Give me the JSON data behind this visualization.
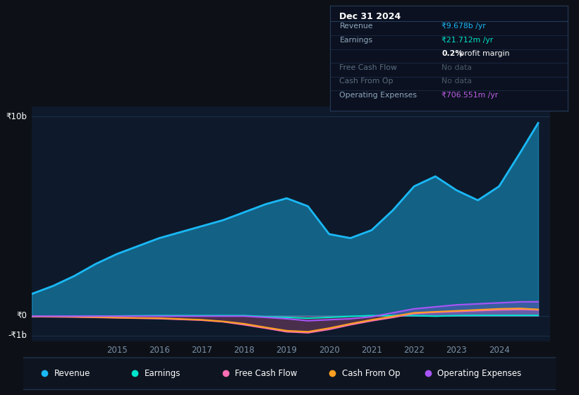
{
  "background_color": "#0d1117",
  "plot_bg_color": "#0e1a2b",
  "grid_color": "#1a3050",
  "years": [
    2013.0,
    2013.5,
    2014.0,
    2014.5,
    2015.0,
    2015.5,
    2016.0,
    2016.5,
    2017.0,
    2017.5,
    2018.0,
    2018.5,
    2019.0,
    2019.5,
    2020.0,
    2020.5,
    2021.0,
    2021.5,
    2022.0,
    2022.5,
    2023.0,
    2023.5,
    2024.0,
    2024.5,
    2024.92
  ],
  "revenue": [
    1.1,
    1.5,
    2.0,
    2.6,
    3.1,
    3.5,
    3.9,
    4.2,
    4.5,
    4.8,
    5.2,
    5.6,
    5.9,
    5.5,
    4.1,
    3.9,
    4.3,
    5.3,
    6.5,
    7.0,
    6.3,
    5.8,
    6.5,
    8.2,
    9.678
  ],
  "earnings": [
    -0.05,
    -0.04,
    -0.03,
    -0.02,
    -0.01,
    0.0,
    0.01,
    0.01,
    0.01,
    0.01,
    0.01,
    -0.05,
    -0.08,
    -0.12,
    -0.08,
    -0.03,
    0.01,
    0.01,
    0.01,
    -0.02,
    0.01,
    0.02,
    0.02,
    0.02,
    0.02
  ],
  "free_cash_flow": [
    -0.04,
    -0.05,
    -0.06,
    -0.08,
    -0.1,
    -0.12,
    -0.14,
    -0.18,
    -0.22,
    -0.3,
    -0.45,
    -0.62,
    -0.8,
    -0.85,
    -0.68,
    -0.45,
    -0.25,
    -0.08,
    0.12,
    0.18,
    0.22,
    0.26,
    0.3,
    0.32,
    0.3
  ],
  "cash_from_op": [
    -0.03,
    -0.04,
    -0.05,
    -0.07,
    -0.09,
    -0.11,
    -0.12,
    -0.16,
    -0.2,
    -0.28,
    -0.4,
    -0.58,
    -0.75,
    -0.8,
    -0.62,
    -0.4,
    -0.2,
    -0.03,
    0.15,
    0.2,
    0.25,
    0.3,
    0.35,
    0.37,
    0.32
  ],
  "operating_expenses": [
    -0.02,
    -0.02,
    -0.02,
    -0.02,
    -0.02,
    -0.02,
    -0.02,
    -0.02,
    -0.02,
    -0.02,
    -0.02,
    -0.08,
    -0.15,
    -0.25,
    -0.2,
    -0.15,
    -0.05,
    0.15,
    0.35,
    0.45,
    0.55,
    0.6,
    0.65,
    0.7,
    0.706
  ],
  "ylim_min": -1.3,
  "ylim_max": 10.5,
  "xlim_min": 2013.0,
  "xlim_max": 2025.2,
  "revenue_color": "#1ab8f5",
  "earnings_color": "#00e5cc",
  "fcf_color": "#ff6eb4",
  "cash_op_color": "#ffa020",
  "opex_color": "#a855f7",
  "legend_items": [
    "Revenue",
    "Earnings",
    "Free Cash Flow",
    "Cash From Op",
    "Operating Expenses"
  ],
  "legend_colors": [
    "#1ab8f5",
    "#00e5cc",
    "#ff6eb4",
    "#ffa020",
    "#a855f7"
  ],
  "xtick_positions": [
    2015,
    2016,
    2017,
    2018,
    2019,
    2020,
    2021,
    2022,
    2023,
    2024
  ],
  "ytick_vals": [
    10,
    0,
    -1
  ],
  "ytick_labels": [
    "₹10b",
    "₹0",
    "-₹1b"
  ]
}
